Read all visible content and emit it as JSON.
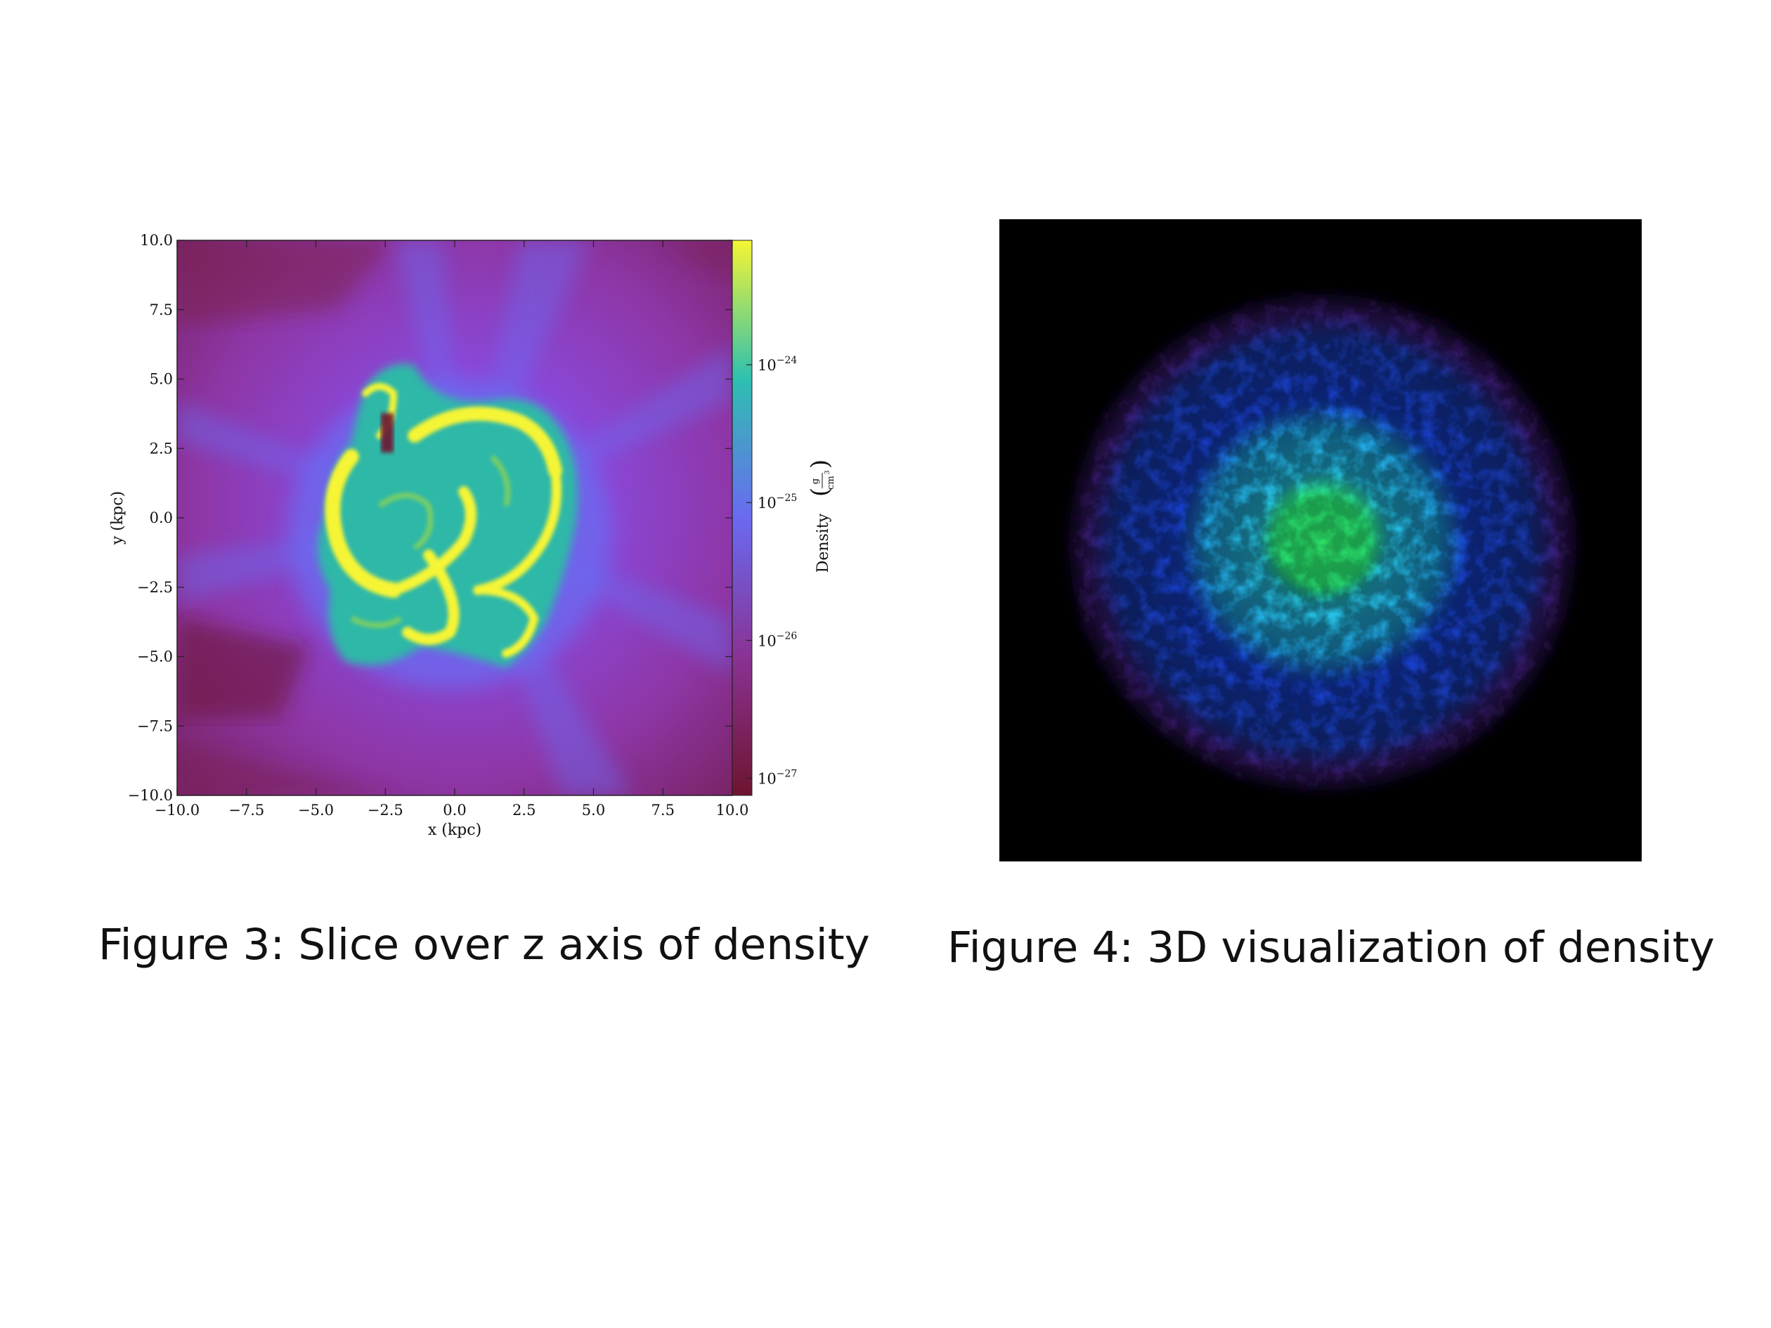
{
  "figure3": {
    "caption": "Figure 3: Slice over z axis of density",
    "chart_data": {
      "type": "heatmap",
      "title": "",
      "xlabel": "x (kpc)",
      "ylabel": "y (kpc)",
      "xlim": [
        -10.0,
        10.0
      ],
      "ylim": [
        -10.0,
        10.0
      ],
      "x_ticks": [
        "−10.0",
        "−7.5",
        "−5.0",
        "−2.5",
        "0.0",
        "2.5",
        "5.0",
        "7.5",
        "10.0"
      ],
      "y_ticks": [
        "−10.0",
        "−7.5",
        "−5.0",
        "−2.5",
        "0.0",
        "2.5",
        "5.0",
        "7.5",
        "10.0"
      ],
      "colorbar": {
        "label": "Density",
        "unit_num": "g",
        "unit_den": "cm",
        "unit_den_exp": "3",
        "scale": "log",
        "ticks": [
          {
            "base": "10",
            "exp": "−24",
            "value": 1e-24
          },
          {
            "base": "10",
            "exp": "−25",
            "value": 1e-25
          },
          {
            "base": "10",
            "exp": "−26",
            "value": 1e-26
          },
          {
            "base": "10",
            "exp": "−27",
            "value": 1e-27
          }
        ],
        "colors": [
          "#6e1430",
          "#8a3294",
          "#6a6af0",
          "#2ec0b0",
          "#f6f534"
        ]
      }
    }
  },
  "figure4": {
    "caption": "Figure 4: 3D visualization of density",
    "colors": [
      "#000000",
      "#3a1a70",
      "#1840d0",
      "#27c8e6",
      "#2ee86a"
    ]
  }
}
